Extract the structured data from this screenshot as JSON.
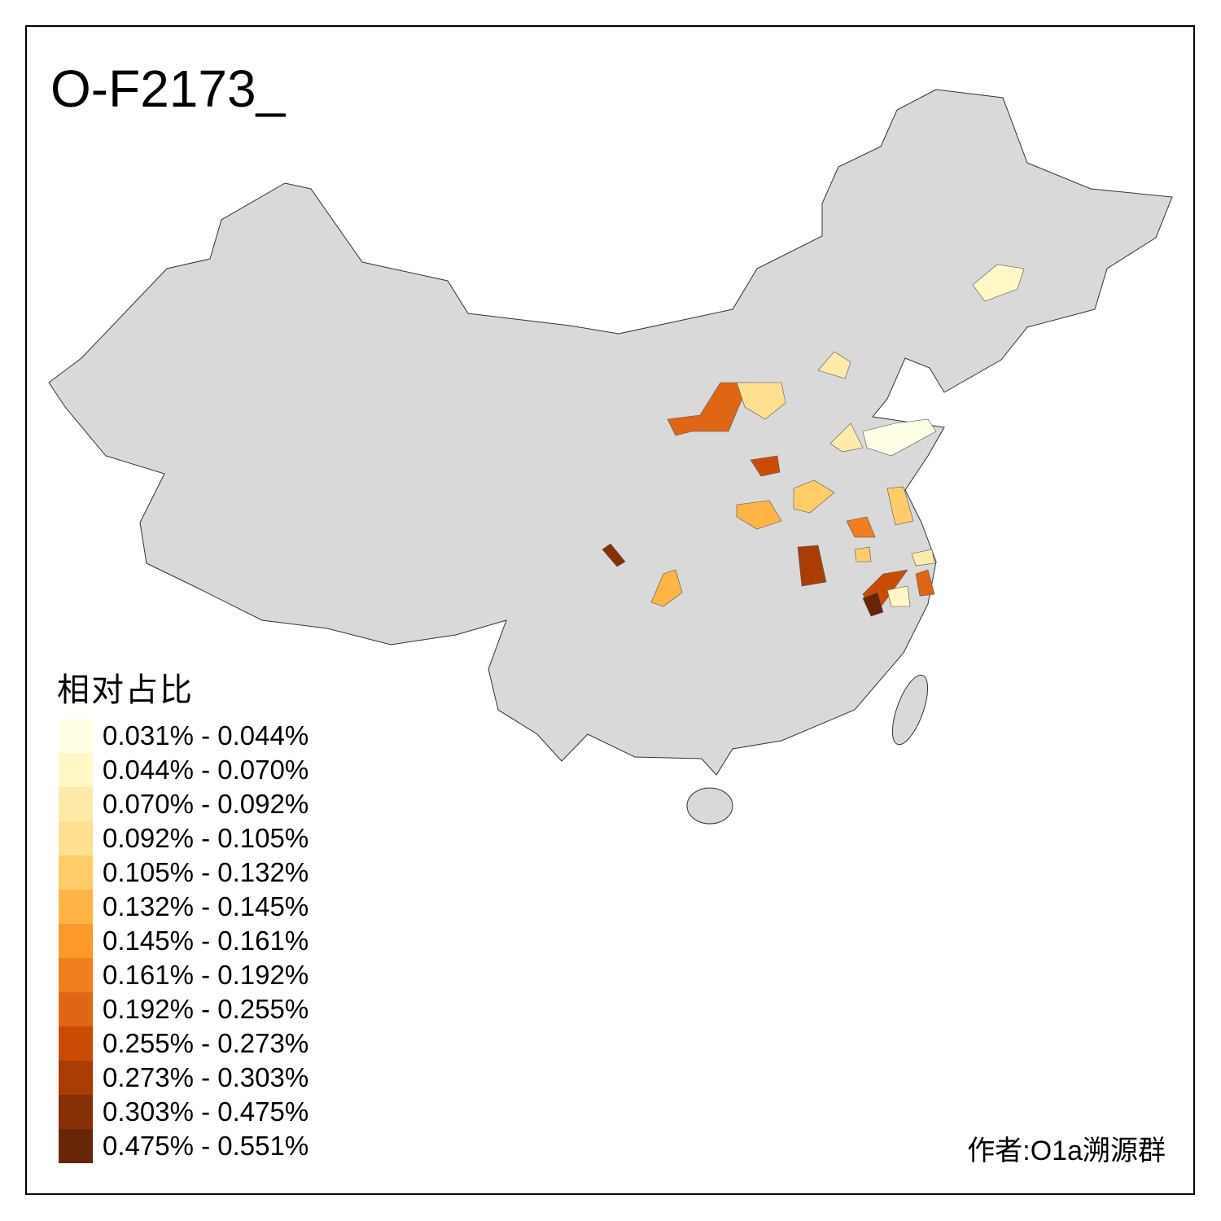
{
  "title": "O-F2173_",
  "legend": {
    "title": "相对占比",
    "items": [
      {
        "label": "0.031% - 0.044%",
        "color": "#FFFFE5"
      },
      {
        "label": "0.044% - 0.070%",
        "color": "#FFF8C6"
      },
      {
        "label": "0.070% - 0.092%",
        "color": "#FEEBAA"
      },
      {
        "label": "0.092% - 0.105%",
        "color": "#FEE090"
      },
      {
        "label": "0.105% - 0.132%",
        "color": "#FECD69"
      },
      {
        "label": "0.132% - 0.145%",
        "color": "#FEB545"
      },
      {
        "label": "0.145% - 0.161%",
        "color": "#FB992B"
      },
      {
        "label": "0.161% - 0.192%",
        "color": "#F0801F"
      },
      {
        "label": "0.192% - 0.255%",
        "color": "#DF6614"
      },
      {
        "label": "0.255% - 0.273%",
        "color": "#CA4C04"
      },
      {
        "label": "0.273% - 0.303%",
        "color": "#A93D04"
      },
      {
        "label": "0.303% - 0.475%",
        "color": "#872F05"
      },
      {
        "label": "0.475% - 0.551%",
        "color": "#662507"
      }
    ]
  },
  "credit": "作者:O1a溯源群",
  "base_color": "#D9D9D9"
}
